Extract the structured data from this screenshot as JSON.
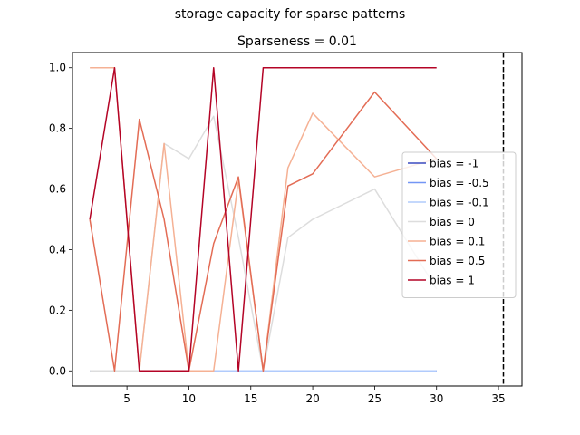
{
  "figure": {
    "suptitle": "storage capacity for sparse patterns"
  },
  "chart_data": {
    "type": "line",
    "title": "Sparseness = 0.01",
    "xlabel": "",
    "ylabel": "",
    "xlim": [
      0.6,
      36.9
    ],
    "ylim": [
      -0.05,
      1.05
    ],
    "xticks": [
      5,
      10,
      15,
      20,
      25,
      30,
      35
    ],
    "yticks": [
      0.0,
      0.2,
      0.4,
      0.6,
      0.8,
      1.0
    ],
    "ytick_labels": [
      "0.0",
      "0.2",
      "0.4",
      "0.6",
      "0.8",
      "1.0"
    ],
    "grid": false,
    "legend_position": "center-right",
    "vline": {
      "x": 35.4,
      "style": "dashed",
      "color": "#000000"
    },
    "x": [
      2,
      4,
      6,
      8,
      10,
      12,
      14,
      16,
      18,
      20,
      25,
      30
    ],
    "series": [
      {
        "name": "bias = -1",
        "color": "#3b4cc0",
        "values": [
          0,
          0,
          0,
          0,
          0,
          0,
          0,
          0,
          0,
          0,
          0,
          0
        ]
      },
      {
        "name": "bias = -0.5",
        "color": "#7396f5",
        "values": [
          0,
          0,
          0,
          0,
          0,
          0,
          0,
          0,
          0,
          0,
          0,
          0
        ]
      },
      {
        "name": "bias = -0.1",
        "color": "#b1cbfc",
        "values": [
          0,
          0,
          0,
          0,
          0,
          0,
          0,
          0,
          0,
          0,
          0,
          0
        ]
      },
      {
        "name": "bias = 0",
        "color": "#dddddd",
        "values": [
          0,
          0,
          0,
          0.75,
          0.7,
          0.84,
          0.44,
          0,
          0.44,
          0.5,
          0.6,
          0.27
        ]
      },
      {
        "name": "bias = 0.1",
        "color": "#f5b194",
        "values": [
          1.0,
          1.0,
          0,
          0.75,
          0,
          0,
          0.63,
          0,
          0.67,
          0.85,
          0.64,
          0.7
        ]
      },
      {
        "name": "bias = 0.5",
        "color": "#e36c55",
        "values": [
          0.5,
          0,
          0.83,
          0.5,
          0,
          0.42,
          0.64,
          0,
          0.61,
          0.65,
          0.92,
          0.7
        ]
      },
      {
        "name": "bias = 1",
        "color": "#b40426",
        "values": [
          0.5,
          1.0,
          0,
          0,
          0,
          1.0,
          0,
          1.0,
          1.0,
          1.0,
          1.0,
          1.0
        ]
      }
    ]
  }
}
